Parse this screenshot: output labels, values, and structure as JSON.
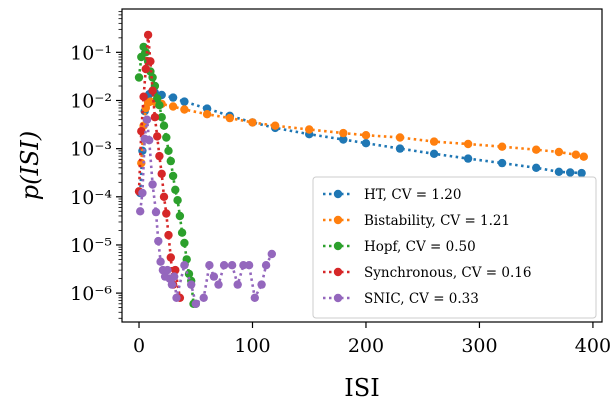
{
  "chart_data": {
    "type": "line",
    "title": "",
    "xlabel": "ISI",
    "ylabel": "p(ISI)",
    "xlim": [
      -15,
      408
    ],
    "ylim_log10": [
      -6.6,
      -0.1
    ],
    "y_scale": "log",
    "grid": false,
    "legend_placement": "lower-right",
    "x_ticks": [
      0,
      100,
      200,
      300,
      400
    ],
    "x_tick_labels": [
      "0",
      "100",
      "200",
      "300",
      "400"
    ],
    "y_ticks_log10": [
      -1,
      -2,
      -3,
      -4,
      -5,
      -6
    ],
    "y_tick_labels": [
      "10⁻¹",
      "10⁻²",
      "10⁻³",
      "10⁻⁴",
      "10⁻⁵",
      "10⁻⁶"
    ],
    "series": [
      {
        "name": "HT, CV = 1.20",
        "color": "#1f77b4",
        "points": [
          [
            1,
            0.00012
          ],
          [
            3,
            0.0009
          ],
          [
            5,
            0.006
          ],
          [
            7,
            0.011
          ],
          [
            9,
            0.0135
          ],
          [
            11,
            0.0145
          ],
          [
            14,
            0.0145
          ],
          [
            20,
            0.013
          ],
          [
            30,
            0.0115
          ],
          [
            40,
            0.0095
          ],
          [
            60,
            0.0068
          ],
          [
            80,
            0.0048
          ],
          [
            100,
            0.0035
          ],
          [
            120,
            0.0027
          ],
          [
            150,
            0.002
          ],
          [
            180,
            0.00155
          ],
          [
            200,
            0.0013
          ],
          [
            230,
            0.001
          ],
          [
            260,
            0.00078
          ],
          [
            290,
            0.00062
          ],
          [
            320,
            0.0005
          ],
          [
            350,
            0.0004
          ],
          [
            370,
            0.00033
          ],
          [
            380,
            0.00032
          ],
          [
            390,
            0.00031
          ]
        ]
      },
      {
        "name": "Bistability, CV = 1.21",
        "color": "#ff7f0e",
        "points": [
          [
            2,
            0.0005
          ],
          [
            4,
            0.003
          ],
          [
            6,
            0.007
          ],
          [
            8,
            0.009
          ],
          [
            10,
            0.0095
          ],
          [
            15,
            0.009
          ],
          [
            20,
            0.0085
          ],
          [
            30,
            0.0075
          ],
          [
            40,
            0.0065
          ],
          [
            60,
            0.0052
          ],
          [
            80,
            0.0043
          ],
          [
            100,
            0.0035
          ],
          [
            120,
            0.003
          ],
          [
            150,
            0.0025
          ],
          [
            180,
            0.0021
          ],
          [
            200,
            0.0019
          ],
          [
            230,
            0.0017
          ],
          [
            260,
            0.0014
          ],
          [
            290,
            0.00125
          ],
          [
            320,
            0.0011
          ],
          [
            350,
            0.00095
          ],
          [
            370,
            0.00085
          ],
          [
            385,
            0.00075
          ],
          [
            392,
            0.00068
          ]
        ]
      },
      {
        "name": "Hopf, CV = 0.50",
        "color": "#2ca02c",
        "points": [
          [
            0,
            0.03
          ],
          [
            2,
            0.08
          ],
          [
            4,
            0.13
          ],
          [
            6,
            0.1
          ],
          [
            8,
            0.065
          ],
          [
            10,
            0.04
          ],
          [
            12,
            0.03
          ],
          [
            14,
            0.02
          ],
          [
            16,
            0.011
          ],
          [
            18,
            0.008
          ],
          [
            20,
            0.0045
          ],
          [
            22,
            0.003
          ],
          [
            24,
            0.0017
          ],
          [
            26,
            0.0009
          ],
          [
            28,
            0.00055
          ],
          [
            30,
            0.00027
          ],
          [
            32,
            0.00014
          ],
          [
            34,
            8.5e-05
          ],
          [
            36,
            4e-05
          ],
          [
            38,
            1.8e-05
          ],
          [
            40,
            1.1e-05
          ],
          [
            42,
            5e-06
          ],
          [
            44,
            2.5e-06
          ],
          [
            46,
            1.8e-06
          ],
          [
            48,
            6e-07
          ],
          [
            50,
            6e-07
          ]
        ]
      },
      {
        "name": "Synchronous, CV = 0.16",
        "color": "#d62728",
        "points": [
          [
            0,
            0.00013
          ],
          [
            2,
            0.0023
          ],
          [
            4,
            0.012
          ],
          [
            6,
            0.045
          ],
          [
            8,
            0.23
          ],
          [
            10,
            0.065
          ],
          [
            12,
            0.016
          ],
          [
            14,
            0.0045
          ],
          [
            16,
            0.0018
          ],
          [
            18,
            0.0007
          ],
          [
            20,
            0.0003
          ],
          [
            22,
            0.0001
          ],
          [
            24,
            4.5e-05
          ],
          [
            26,
            1.6e-05
          ],
          [
            28,
            5.5e-06
          ],
          [
            30,
            1.5e-06
          ],
          [
            32,
            3e-06
          ],
          [
            36,
            8e-07
          ]
        ]
      },
      {
        "name": "SNIC, CV = 0.33",
        "color": "#9467bd",
        "points": [
          [
            1,
            5e-05
          ],
          [
            3,
            0.00012
          ],
          [
            5,
            0.0016
          ],
          [
            7,
            0.004
          ],
          [
            9,
            0.0015
          ],
          [
            12,
            0.00018
          ],
          [
            15,
            4.8e-05
          ],
          [
            17,
            1.2e-05
          ],
          [
            19,
            4.5e-06
          ],
          [
            21,
            3e-06
          ],
          [
            23,
            2.2e-06
          ],
          [
            25,
            3e-06
          ],
          [
            27,
            2e-06
          ],
          [
            29,
            1.5e-06
          ],
          [
            31,
            2.2e-06
          ],
          [
            33,
            8e-07
          ],
          [
            40,
            3.8e-06
          ],
          [
            46,
            1.5e-06
          ],
          [
            50,
            6e-07
          ],
          [
            57,
            8e-07
          ],
          [
            62,
            3.8e-06
          ],
          [
            66,
            2.2e-06
          ],
          [
            70,
            1.5e-06
          ],
          [
            75,
            3.8e-06
          ],
          [
            82,
            3.8e-06
          ],
          [
            87,
            1.5e-06
          ],
          [
            92,
            3.8e-06
          ],
          [
            97,
            3.8e-06
          ],
          [
            102,
            8e-07
          ],
          [
            108,
            1.5e-06
          ],
          [
            112,
            3.8e-06
          ],
          [
            117,
            6.5e-06
          ]
        ]
      }
    ]
  }
}
